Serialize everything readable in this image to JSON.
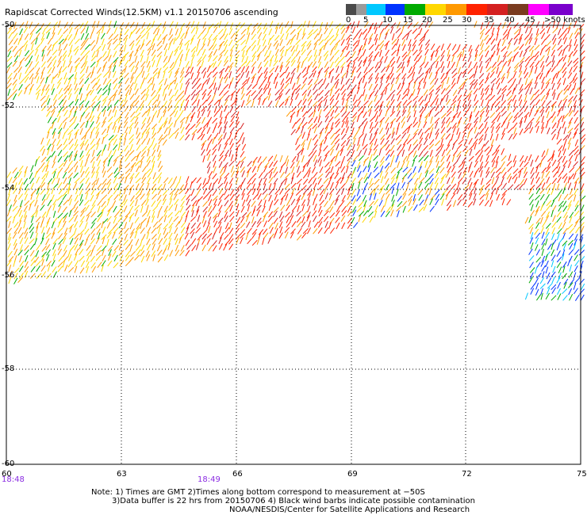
{
  "title": "Rapidscat Corrected Winds(12.5KM) v1.1 20150706 ascending",
  "speed_scale": {
    "labels": [
      "0",
      "5",
      "10",
      "15",
      "20",
      "25",
      "30",
      "35",
      "40",
      "45",
      ">50 knots"
    ],
    "colors": [
      "#4a4a4a",
      "#9a9a9a",
      "#00c8ff",
      "#0033ff",
      "#00aa00",
      "#ffd700",
      "#ff9900",
      "#ff2200",
      "#d42020",
      "#7a3b1f",
      "#ff00ff",
      "#7a00cc"
    ]
  },
  "axes": {
    "lat_labels": [
      "-50",
      "-52",
      "-54",
      "-56",
      "-58",
      "-60"
    ],
    "lon_labels": [
      "60",
      "63",
      "66",
      "69",
      "72",
      "75"
    ]
  },
  "times": [
    "18:48",
    "18:49"
  ],
  "notes": [
    "Note: 1) Times are GMT 2)Times along bottom correspond to measurement at −50S",
    "3)Data buffer is 22 hrs from 20150706 4) Black wind barbs indicate possible contamination",
    "NOAA/NESDIS/Center for Satellite Applications and Research"
  ]
}
